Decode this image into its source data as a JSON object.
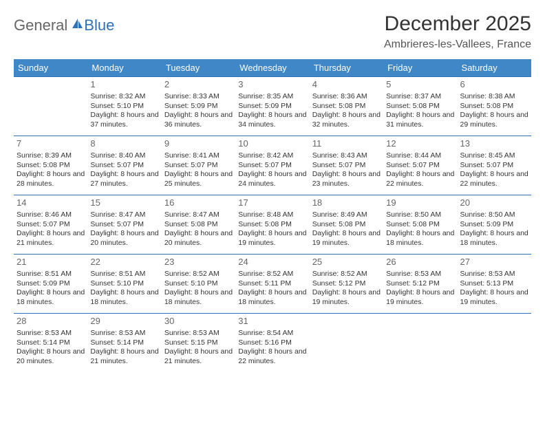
{
  "logo": {
    "general": "General",
    "blue": "Blue"
  },
  "title": "December 2025",
  "location": "Ambrieres-les-Vallees, France",
  "colors": {
    "header_bg": "#3f87c7",
    "header_text": "#ffffff",
    "border": "#2f71b8",
    "text": "#333333",
    "daynum": "#666666",
    "logo_gray": "#666666",
    "logo_blue": "#2f71b8"
  },
  "weekdays": [
    "Sunday",
    "Monday",
    "Tuesday",
    "Wednesday",
    "Thursday",
    "Friday",
    "Saturday"
  ],
  "weeks": [
    [
      {
        "day": "",
        "sunrise": "",
        "sunset": "",
        "daylight": ""
      },
      {
        "day": "1",
        "sunrise": "Sunrise: 8:32 AM",
        "sunset": "Sunset: 5:10 PM",
        "daylight": "Daylight: 8 hours and 37 minutes."
      },
      {
        "day": "2",
        "sunrise": "Sunrise: 8:33 AM",
        "sunset": "Sunset: 5:09 PM",
        "daylight": "Daylight: 8 hours and 36 minutes."
      },
      {
        "day": "3",
        "sunrise": "Sunrise: 8:35 AM",
        "sunset": "Sunset: 5:09 PM",
        "daylight": "Daylight: 8 hours and 34 minutes."
      },
      {
        "day": "4",
        "sunrise": "Sunrise: 8:36 AM",
        "sunset": "Sunset: 5:08 PM",
        "daylight": "Daylight: 8 hours and 32 minutes."
      },
      {
        "day": "5",
        "sunrise": "Sunrise: 8:37 AM",
        "sunset": "Sunset: 5:08 PM",
        "daylight": "Daylight: 8 hours and 31 minutes."
      },
      {
        "day": "6",
        "sunrise": "Sunrise: 8:38 AM",
        "sunset": "Sunset: 5:08 PM",
        "daylight": "Daylight: 8 hours and 29 minutes."
      }
    ],
    [
      {
        "day": "7",
        "sunrise": "Sunrise: 8:39 AM",
        "sunset": "Sunset: 5:08 PM",
        "daylight": "Daylight: 8 hours and 28 minutes."
      },
      {
        "day": "8",
        "sunrise": "Sunrise: 8:40 AM",
        "sunset": "Sunset: 5:07 PM",
        "daylight": "Daylight: 8 hours and 27 minutes."
      },
      {
        "day": "9",
        "sunrise": "Sunrise: 8:41 AM",
        "sunset": "Sunset: 5:07 PM",
        "daylight": "Daylight: 8 hours and 25 minutes."
      },
      {
        "day": "10",
        "sunrise": "Sunrise: 8:42 AM",
        "sunset": "Sunset: 5:07 PM",
        "daylight": "Daylight: 8 hours and 24 minutes."
      },
      {
        "day": "11",
        "sunrise": "Sunrise: 8:43 AM",
        "sunset": "Sunset: 5:07 PM",
        "daylight": "Daylight: 8 hours and 23 minutes."
      },
      {
        "day": "12",
        "sunrise": "Sunrise: 8:44 AM",
        "sunset": "Sunset: 5:07 PM",
        "daylight": "Daylight: 8 hours and 22 minutes."
      },
      {
        "day": "13",
        "sunrise": "Sunrise: 8:45 AM",
        "sunset": "Sunset: 5:07 PM",
        "daylight": "Daylight: 8 hours and 22 minutes."
      }
    ],
    [
      {
        "day": "14",
        "sunrise": "Sunrise: 8:46 AM",
        "sunset": "Sunset: 5:07 PM",
        "daylight": "Daylight: 8 hours and 21 minutes."
      },
      {
        "day": "15",
        "sunrise": "Sunrise: 8:47 AM",
        "sunset": "Sunset: 5:07 PM",
        "daylight": "Daylight: 8 hours and 20 minutes."
      },
      {
        "day": "16",
        "sunrise": "Sunrise: 8:47 AM",
        "sunset": "Sunset: 5:08 PM",
        "daylight": "Daylight: 8 hours and 20 minutes."
      },
      {
        "day": "17",
        "sunrise": "Sunrise: 8:48 AM",
        "sunset": "Sunset: 5:08 PM",
        "daylight": "Daylight: 8 hours and 19 minutes."
      },
      {
        "day": "18",
        "sunrise": "Sunrise: 8:49 AM",
        "sunset": "Sunset: 5:08 PM",
        "daylight": "Daylight: 8 hours and 19 minutes."
      },
      {
        "day": "19",
        "sunrise": "Sunrise: 8:50 AM",
        "sunset": "Sunset: 5:08 PM",
        "daylight": "Daylight: 8 hours and 18 minutes."
      },
      {
        "day": "20",
        "sunrise": "Sunrise: 8:50 AM",
        "sunset": "Sunset: 5:09 PM",
        "daylight": "Daylight: 8 hours and 18 minutes."
      }
    ],
    [
      {
        "day": "21",
        "sunrise": "Sunrise: 8:51 AM",
        "sunset": "Sunset: 5:09 PM",
        "daylight": "Daylight: 8 hours and 18 minutes."
      },
      {
        "day": "22",
        "sunrise": "Sunrise: 8:51 AM",
        "sunset": "Sunset: 5:10 PM",
        "daylight": "Daylight: 8 hours and 18 minutes."
      },
      {
        "day": "23",
        "sunrise": "Sunrise: 8:52 AM",
        "sunset": "Sunset: 5:10 PM",
        "daylight": "Daylight: 8 hours and 18 minutes."
      },
      {
        "day": "24",
        "sunrise": "Sunrise: 8:52 AM",
        "sunset": "Sunset: 5:11 PM",
        "daylight": "Daylight: 8 hours and 18 minutes."
      },
      {
        "day": "25",
        "sunrise": "Sunrise: 8:52 AM",
        "sunset": "Sunset: 5:12 PM",
        "daylight": "Daylight: 8 hours and 19 minutes."
      },
      {
        "day": "26",
        "sunrise": "Sunrise: 8:53 AM",
        "sunset": "Sunset: 5:12 PM",
        "daylight": "Daylight: 8 hours and 19 minutes."
      },
      {
        "day": "27",
        "sunrise": "Sunrise: 8:53 AM",
        "sunset": "Sunset: 5:13 PM",
        "daylight": "Daylight: 8 hours and 19 minutes."
      }
    ],
    [
      {
        "day": "28",
        "sunrise": "Sunrise: 8:53 AM",
        "sunset": "Sunset: 5:14 PM",
        "daylight": "Daylight: 8 hours and 20 minutes."
      },
      {
        "day": "29",
        "sunrise": "Sunrise: 8:53 AM",
        "sunset": "Sunset: 5:14 PM",
        "daylight": "Daylight: 8 hours and 21 minutes."
      },
      {
        "day": "30",
        "sunrise": "Sunrise: 8:53 AM",
        "sunset": "Sunset: 5:15 PM",
        "daylight": "Daylight: 8 hours and 21 minutes."
      },
      {
        "day": "31",
        "sunrise": "Sunrise: 8:54 AM",
        "sunset": "Sunset: 5:16 PM",
        "daylight": "Daylight: 8 hours and 22 minutes."
      },
      {
        "day": "",
        "sunrise": "",
        "sunset": "",
        "daylight": ""
      },
      {
        "day": "",
        "sunrise": "",
        "sunset": "",
        "daylight": ""
      },
      {
        "day": "",
        "sunrise": "",
        "sunset": "",
        "daylight": ""
      }
    ]
  ]
}
